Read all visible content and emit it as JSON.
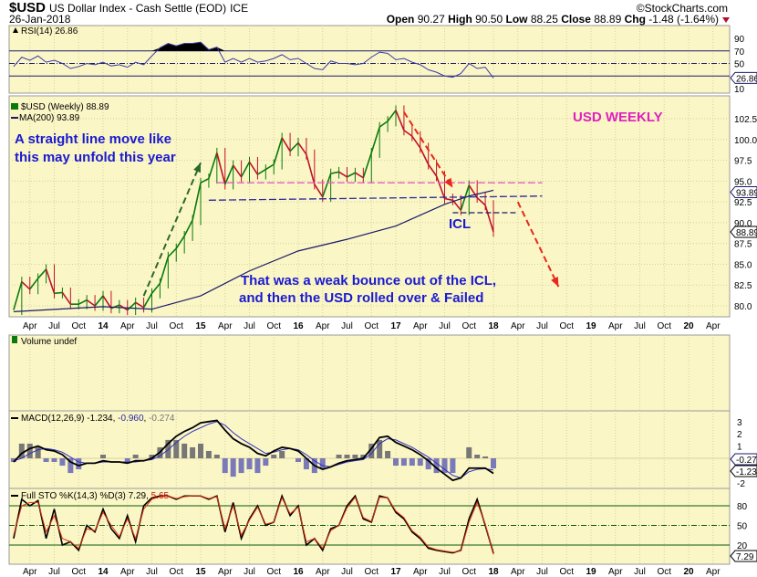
{
  "header": {
    "symbol": "$USD",
    "name": "US Dollar Index - Cash Settle (EOD)",
    "exchange": "ICE",
    "date": "26-Jan-2018",
    "watermark": "©StockCharts.com",
    "open_label": "Open",
    "open": "90.27",
    "high_label": "High",
    "high": "90.50",
    "low_label": "Low",
    "low": "88.25",
    "close_label": "Close",
    "close": "88.89",
    "chg_label": "Chg",
    "chg": "-1.48 (-1.64%)"
  },
  "colors": {
    "background": "#fbf6c6",
    "grid": "#d8d0a0",
    "up": "#0a7a0a",
    "down": "#c0102a",
    "ma": "#1a1a6a",
    "rsi": "#3a3aa8",
    "annotation_text": "#1a1ad0",
    "title_text": "#e020c0",
    "arrow_red": "#e8281c",
    "arrow_green": "#2a6a2a"
  },
  "chart_data": [
    {
      "type": "line",
      "panel": "rsi",
      "legend": "RSI(14) 26.86",
      "last_value": "26.86",
      "ylim": [
        0,
        100
      ],
      "yticks": [
        "90",
        "70",
        "50",
        "10"
      ],
      "levels": [
        70,
        50,
        30
      ],
      "x": [
        "2013-02",
        "2013-03",
        "2013-04",
        "2013-05",
        "2013-06",
        "2013-07",
        "2013-08",
        "2013-09",
        "2013-10",
        "2013-11",
        "2013-12",
        "2014-01",
        "2014-02",
        "2014-03",
        "2014-04",
        "2014-05",
        "2014-06",
        "2014-07",
        "2014-08",
        "2014-09",
        "2014-10",
        "2014-11",
        "2014-12",
        "2015-01",
        "2015-02",
        "2015-03",
        "2015-04",
        "2015-05",
        "2015-06",
        "2015-07",
        "2015-08",
        "2015-09",
        "2015-10",
        "2015-11",
        "2015-12",
        "2016-01",
        "2016-02",
        "2016-03",
        "2016-04",
        "2016-05",
        "2016-06",
        "2016-07",
        "2016-08",
        "2016-09",
        "2016-10",
        "2016-11",
        "2016-12",
        "2017-01",
        "2017-02",
        "2017-03",
        "2017-04",
        "2017-05",
        "2017-06",
        "2017-07",
        "2017-08",
        "2017-09",
        "2017-10",
        "2017-11",
        "2017-12",
        "2018-01"
      ],
      "values": [
        45,
        60,
        55,
        62,
        52,
        55,
        50,
        42,
        45,
        50,
        48,
        52,
        46,
        48,
        44,
        52,
        48,
        62,
        75,
        82,
        78,
        82,
        82,
        84,
        72,
        76,
        52,
        58,
        52,
        58,
        52,
        54,
        58,
        64,
        56,
        58,
        50,
        42,
        40,
        54,
        50,
        50,
        48,
        50,
        60,
        68,
        66,
        56,
        58,
        52,
        48,
        40,
        36,
        30,
        28,
        34,
        50,
        42,
        44,
        26.86
      ]
    },
    {
      "type": "line",
      "panel": "price",
      "title": "USD WEEKLY",
      "legend": "$USD (Weekly) 88.89",
      "ma_legend": "MA(200) 93.89",
      "last_value": "88.89",
      "ma_last_value": "93.89",
      "ylim": [
        79,
        104
      ],
      "yticks": [
        "102.5",
        "100.0",
        "97.5",
        "95.0",
        "92.5",
        "90.0",
        "87.5",
        "85.0",
        "82.5",
        "80.0"
      ],
      "x": [
        "2013-02",
        "2013-03",
        "2013-04",
        "2013-05",
        "2013-06",
        "2013-07",
        "2013-08",
        "2013-09",
        "2013-10",
        "2013-11",
        "2013-12",
        "2014-01",
        "2014-02",
        "2014-03",
        "2014-04",
        "2014-05",
        "2014-06",
        "2014-07",
        "2014-08",
        "2014-09",
        "2014-10",
        "2014-11",
        "2014-12",
        "2015-01",
        "2015-02",
        "2015-03",
        "2015-04",
        "2015-05",
        "2015-06",
        "2015-07",
        "2015-08",
        "2015-09",
        "2015-10",
        "2015-11",
        "2015-12",
        "2016-01",
        "2016-02",
        "2016-03",
        "2016-04",
        "2016-05",
        "2016-06",
        "2016-07",
        "2016-08",
        "2016-09",
        "2016-10",
        "2016-11",
        "2016-12",
        "2017-01",
        "2017-02",
        "2017-03",
        "2017-04",
        "2017-05",
        "2017-06",
        "2017-07",
        "2017-08",
        "2017-09",
        "2017-10",
        "2017-11",
        "2017-12",
        "2018-01"
      ],
      "values": [
        79.5,
        82.9,
        82.0,
        83.3,
        84.4,
        81.5,
        81.6,
        80.2,
        80.2,
        80.7,
        80.0,
        81.2,
        79.7,
        80.1,
        79.5,
        80.4,
        79.8,
        81.5,
        82.7,
        85.9,
        86.9,
        88.4,
        90.3,
        94.8,
        95.3,
        98.4,
        94.6,
        96.9,
        95.5,
        97.3,
        95.8,
        96.4,
        97.0,
        100.2,
        98.6,
        99.6,
        98.2,
        94.6,
        93.1,
        95.9,
        96.1,
        95.5,
        96.0,
        95.4,
        98.4,
        101.5,
        102.2,
        103.5,
        101.1,
        100.4,
        99.0,
        97.0,
        95.6,
        92.9,
        92.7,
        91.5,
        94.5,
        93.0,
        92.1,
        88.89
      ],
      "ma200": {
        "x": [
          "2013-02",
          "2014-01",
          "2014-07",
          "2015-01",
          "2015-07",
          "2016-01",
          "2016-07",
          "2017-01",
          "2017-07",
          "2017-10",
          "2018-01"
        ],
        "values": [
          79.3,
          79.9,
          79.6,
          81.2,
          84.2,
          86.6,
          88.0,
          89.6,
          92.2,
          93.2,
          93.89
        ]
      },
      "annotations": {
        "text_1": [
          "A straight line move like",
          "this may unfold this year"
        ],
        "icl": "ICL",
        "text_2": [
          "That was a weak bounce out of the ICL,",
          "and then the USD rolled over & Failed"
        ],
        "pink_line": {
          "from": [
            "2015-03",
            94.8
          ],
          "to": [
            "2018-07",
            94.8
          ]
        },
        "blue_line": {
          "from": [
            "2015-02",
            92.7
          ],
          "to": [
            "2018-07",
            93.2
          ]
        },
        "icl_line": {
          "from": [
            "2017-08",
            91.2
          ],
          "to": [
            "2018-04",
            91.2
          ]
        },
        "green_arrow": {
          "from": [
            "2014-06",
            81.2
          ],
          "to": [
            "2015-01",
            97.2
          ]
        },
        "red_arrow_1": {
          "from": [
            "2017-02",
            103.3
          ],
          "to": [
            "2017-08",
            94.2
          ]
        },
        "red_arrow_2": {
          "from": [
            "2018-04",
            92.5
          ],
          "to": [
            "2018-09",
            82.3
          ]
        }
      }
    },
    {
      "type": "bar",
      "panel": "volume",
      "legend": "Volume undef"
    },
    {
      "type": "line",
      "panel": "macd",
      "legend": "MACD(12,26,9)",
      "macd_value": "-1.234",
      "signal_value": "-0.960",
      "hist_value": "-0.274",
      "ylim": [
        -2.5,
        3.5
      ],
      "yticks": [
        "3",
        "2",
        "1",
        "-2"
      ],
      "x": [
        "2013-02",
        "2013-03",
        "2013-04",
        "2013-05",
        "2013-06",
        "2013-07",
        "2013-08",
        "2013-09",
        "2013-10",
        "2013-11",
        "2013-12",
        "2014-01",
        "2014-02",
        "2014-03",
        "2014-04",
        "2014-05",
        "2014-06",
        "2014-07",
        "2014-08",
        "2014-09",
        "2014-10",
        "2014-11",
        "2014-12",
        "2015-01",
        "2015-02",
        "2015-03",
        "2015-04",
        "2015-05",
        "2015-06",
        "2015-07",
        "2015-08",
        "2015-09",
        "2015-10",
        "2015-11",
        "2015-12",
        "2016-01",
        "2016-02",
        "2016-03",
        "2016-04",
        "2016-05",
        "2016-06",
        "2016-07",
        "2016-08",
        "2016-09",
        "2016-10",
        "2016-11",
        "2016-12",
        "2017-01",
        "2017-02",
        "2017-03",
        "2017-04",
        "2017-05",
        "2017-06",
        "2017-07",
        "2017-08",
        "2017-09",
        "2017-10",
        "2017-11",
        "2017-12",
        "2018-01"
      ],
      "macd": [
        -0.3,
        0.4,
        0.8,
        1.0,
        0.7,
        0.6,
        0.3,
        -0.3,
        -0.6,
        -0.4,
        -0.4,
        -0.2,
        -0.3,
        -0.3,
        -0.4,
        -0.2,
        -0.2,
        0.0,
        0.5,
        1.2,
        1.8,
        2.2,
        2.5,
        2.9,
        3.0,
        3.1,
        2.3,
        1.6,
        1.2,
        0.9,
        0.4,
        0.2,
        0.6,
        0.9,
        0.8,
        0.6,
        0.0,
        -0.6,
        -0.9,
        -0.7,
        -0.4,
        -0.2,
        -0.1,
        0.0,
        0.8,
        1.7,
        1.8,
        1.3,
        1.0,
        0.7,
        0.3,
        -0.2,
        -0.8,
        -1.3,
        -1.8,
        -1.6,
        -0.8,
        -0.8,
        -0.8,
        -1.234
      ],
      "signal": [
        -0.2,
        0.0,
        0.4,
        0.7,
        0.8,
        0.7,
        0.5,
        0.1,
        -0.3,
        -0.4,
        -0.4,
        -0.3,
        -0.3,
        -0.3,
        -0.3,
        -0.3,
        -0.2,
        -0.1,
        0.2,
        0.7,
        1.3,
        1.8,
        2.2,
        2.5,
        2.8,
        3.0,
        2.7,
        2.1,
        1.6,
        1.2,
        0.8,
        0.4,
        0.5,
        0.7,
        0.8,
        0.7,
        0.3,
        -0.2,
        -0.6,
        -0.7,
        -0.5,
        -0.3,
        -0.2,
        -0.1,
        0.4,
        1.2,
        1.6,
        1.5,
        1.2,
        0.9,
        0.5,
        0.1,
        -0.4,
        -0.9,
        -1.4,
        -1.6,
        -1.1,
        -0.9,
        -0.85,
        -0.96
      ]
    },
    {
      "type": "line",
      "panel": "stochastic",
      "legend": "Full STO %K(14,3) %D(3)",
      "k_value": "7.29",
      "d_value": "5.65",
      "ylim": [
        0,
        100
      ],
      "yticks": [
        "80",
        "50",
        "20"
      ],
      "levels": [
        80,
        50,
        20
      ],
      "x": [
        "2013-02",
        "2013-03",
        "2013-04",
        "2013-05",
        "2013-06",
        "2013-07",
        "2013-08",
        "2013-09",
        "2013-10",
        "2013-11",
        "2013-12",
        "2014-01",
        "2014-02",
        "2014-03",
        "2014-04",
        "2014-05",
        "2014-06",
        "2014-07",
        "2014-08",
        "2014-09",
        "2014-10",
        "2014-11",
        "2014-12",
        "2015-01",
        "2015-02",
        "2015-03",
        "2015-04",
        "2015-05",
        "2015-06",
        "2015-07",
        "2015-08",
        "2015-09",
        "2015-10",
        "2015-11",
        "2015-12",
        "2016-01",
        "2016-02",
        "2016-03",
        "2016-04",
        "2016-05",
        "2016-06",
        "2016-07",
        "2016-08",
        "2016-09",
        "2016-10",
        "2016-11",
        "2016-12",
        "2017-01",
        "2017-02",
        "2017-03",
        "2017-04",
        "2017-05",
        "2017-06",
        "2017-07",
        "2017-08",
        "2017-09",
        "2017-10",
        "2017-11",
        "2017-12",
        "2018-01"
      ],
      "k": [
        30,
        90,
        80,
        88,
        30,
        75,
        20,
        25,
        12,
        50,
        40,
        75,
        45,
        30,
        65,
        25,
        80,
        92,
        95,
        95,
        90,
        95,
        95,
        95,
        90,
        95,
        40,
        85,
        30,
        60,
        80,
        50,
        55,
        95,
        65,
        80,
        20,
        30,
        12,
        45,
        50,
        80,
        95,
        60,
        55,
        95,
        92,
        70,
        60,
        40,
        30,
        15,
        12,
        10,
        8,
        12,
        60,
        90,
        50,
        7.29
      ],
      "d": [
        35,
        80,
        85,
        85,
        40,
        65,
        30,
        25,
        15,
        45,
        42,
        70,
        50,
        33,
        60,
        30,
        75,
        90,
        94,
        95,
        91,
        94,
        95,
        95,
        91,
        94,
        45,
        80,
        35,
        58,
        78,
        52,
        55,
        92,
        68,
        78,
        25,
        30,
        15,
        42,
        50,
        77,
        93,
        62,
        56,
        93,
        92,
        72,
        62,
        42,
        32,
        17,
        13,
        11,
        9,
        11,
        55,
        85,
        52,
        5.65
      ]
    }
  ],
  "x_axis": {
    "ticks": [
      [
        "2013-04",
        "Apr"
      ],
      [
        "2013-07",
        "Jul"
      ],
      [
        "2013-10",
        "Oct"
      ],
      [
        "2014-01",
        "14"
      ],
      [
        "2014-04",
        "Apr"
      ],
      [
        "2014-07",
        "Jul"
      ],
      [
        "2014-10",
        "Oct"
      ],
      [
        "2015-01",
        "15"
      ],
      [
        "2015-04",
        "Apr"
      ],
      [
        "2015-07",
        "Jul"
      ],
      [
        "2015-10",
        "Oct"
      ],
      [
        "2016-01",
        "16"
      ],
      [
        "2016-04",
        "Apr"
      ],
      [
        "2016-07",
        "Jul"
      ],
      [
        "2016-10",
        "Oct"
      ],
      [
        "2017-01",
        "17"
      ],
      [
        "2017-04",
        "Apr"
      ],
      [
        "2017-07",
        "Jul"
      ],
      [
        "2017-10",
        "Oct"
      ],
      [
        "2018-01",
        "18"
      ],
      [
        "2018-04",
        "Apr"
      ],
      [
        "2018-07",
        "Jul"
      ],
      [
        "2018-10",
        "Oct"
      ],
      [
        "2019-01",
        "19"
      ],
      [
        "2019-04",
        "Apr"
      ],
      [
        "2019-07",
        "Jul"
      ],
      [
        "2019-10",
        "Oct"
      ],
      [
        "2020-01",
        "20"
      ],
      [
        "2020-04",
        "Apr"
      ]
    ]
  }
}
